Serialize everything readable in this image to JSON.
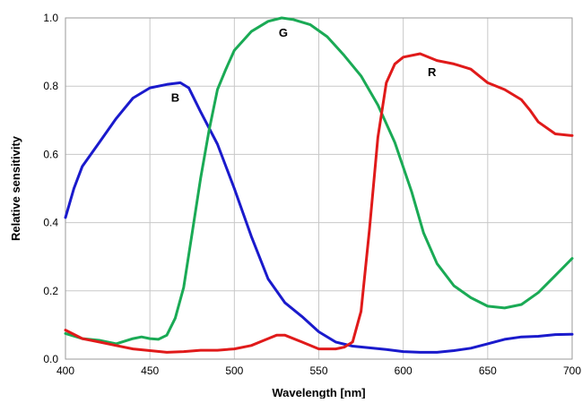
{
  "chart_data": {
    "type": "line",
    "title": "",
    "xlabel": "Wavelength [nm]",
    "ylabel": "Relative sensitivity",
    "xlim": [
      400,
      700
    ],
    "ylim": [
      0,
      1.0
    ],
    "x_ticks": [
      {
        "value": 400,
        "label": "400"
      },
      {
        "value": 450,
        "label": "450"
      },
      {
        "value": 500,
        "label": "500"
      },
      {
        "value": 550,
        "label": "550"
      },
      {
        "value": 600,
        "label": "600"
      },
      {
        "value": 650,
        "label": "650"
      },
      {
        "value": 700,
        "label": "700"
      }
    ],
    "y_ticks": [
      {
        "value": 0.0,
        "label": "0.0"
      },
      {
        "value": 0.2,
        "label": "0.2"
      },
      {
        "value": 0.4,
        "label": "0.4"
      },
      {
        "value": 0.6,
        "label": "0.6"
      },
      {
        "value": 0.8,
        "label": "0.8"
      },
      {
        "value": 1.0,
        "label": "1.0"
      }
    ],
    "grid": true,
    "series": [
      {
        "name": "B",
        "color": "#1a1acc",
        "label_at": [
          465,
          0.755
        ],
        "points": [
          [
            400,
            0.415
          ],
          [
            405,
            0.5
          ],
          [
            410,
            0.565
          ],
          [
            420,
            0.635
          ],
          [
            430,
            0.705
          ],
          [
            440,
            0.765
          ],
          [
            450,
            0.795
          ],
          [
            460,
            0.805
          ],
          [
            468,
            0.81
          ],
          [
            473,
            0.795
          ],
          [
            480,
            0.725
          ],
          [
            490,
            0.63
          ],
          [
            500,
            0.5
          ],
          [
            510,
            0.36
          ],
          [
            520,
            0.235
          ],
          [
            530,
            0.165
          ],
          [
            540,
            0.125
          ],
          [
            550,
            0.08
          ],
          [
            560,
            0.05
          ],
          [
            570,
            0.038
          ],
          [
            580,
            0.033
          ],
          [
            590,
            0.028
          ],
          [
            600,
            0.022
          ],
          [
            610,
            0.02
          ],
          [
            620,
            0.02
          ],
          [
            630,
            0.025
          ],
          [
            640,
            0.032
          ],
          [
            650,
            0.045
          ],
          [
            660,
            0.058
          ],
          [
            670,
            0.065
          ],
          [
            680,
            0.067
          ],
          [
            690,
            0.072
          ],
          [
            700,
            0.073
          ]
        ]
      },
      {
        "name": "G",
        "color": "#1aaa55",
        "label_at": [
          529,
          0.945
        ],
        "points": [
          [
            400,
            0.075
          ],
          [
            410,
            0.06
          ],
          [
            420,
            0.055
          ],
          [
            430,
            0.045
          ],
          [
            440,
            0.06
          ],
          [
            445,
            0.065
          ],
          [
            450,
            0.06
          ],
          [
            455,
            0.058
          ],
          [
            460,
            0.07
          ],
          [
            465,
            0.12
          ],
          [
            470,
            0.21
          ],
          [
            475,
            0.37
          ],
          [
            480,
            0.53
          ],
          [
            485,
            0.67
          ],
          [
            490,
            0.79
          ],
          [
            495,
            0.85
          ],
          [
            500,
            0.905
          ],
          [
            510,
            0.96
          ],
          [
            520,
            0.99
          ],
          [
            528,
            1.0
          ],
          [
            535,
            0.995
          ],
          [
            545,
            0.98
          ],
          [
            555,
            0.945
          ],
          [
            565,
            0.89
          ],
          [
            575,
            0.83
          ],
          [
            585,
            0.745
          ],
          [
            595,
            0.635
          ],
          [
            605,
            0.49
          ],
          [
            612,
            0.37
          ],
          [
            620,
            0.28
          ],
          [
            630,
            0.215
          ],
          [
            640,
            0.18
          ],
          [
            650,
            0.155
          ],
          [
            660,
            0.15
          ],
          [
            670,
            0.16
          ],
          [
            680,
            0.195
          ],
          [
            690,
            0.245
          ],
          [
            700,
            0.295
          ]
        ]
      },
      {
        "name": "R",
        "color": "#e01a1a",
        "label_at": [
          617,
          0.83
        ],
        "points": [
          [
            400,
            0.085
          ],
          [
            410,
            0.06
          ],
          [
            420,
            0.05
          ],
          [
            430,
            0.04
          ],
          [
            440,
            0.03
          ],
          [
            450,
            0.025
          ],
          [
            460,
            0.02
          ],
          [
            470,
            0.022
          ],
          [
            480,
            0.026
          ],
          [
            490,
            0.026
          ],
          [
            500,
            0.03
          ],
          [
            510,
            0.04
          ],
          [
            520,
            0.06
          ],
          [
            525,
            0.07
          ],
          [
            530,
            0.07
          ],
          [
            540,
            0.05
          ],
          [
            550,
            0.03
          ],
          [
            560,
            0.03
          ],
          [
            565,
            0.035
          ],
          [
            570,
            0.05
          ],
          [
            575,
            0.14
          ],
          [
            580,
            0.38
          ],
          [
            585,
            0.65
          ],
          [
            590,
            0.81
          ],
          [
            595,
            0.865
          ],
          [
            600,
            0.885
          ],
          [
            610,
            0.895
          ],
          [
            620,
            0.875
          ],
          [
            630,
            0.865
          ],
          [
            640,
            0.85
          ],
          [
            650,
            0.81
          ],
          [
            660,
            0.79
          ],
          [
            670,
            0.76
          ],
          [
            675,
            0.73
          ],
          [
            680,
            0.695
          ],
          [
            690,
            0.66
          ],
          [
            700,
            0.655
          ]
        ]
      }
    ]
  }
}
